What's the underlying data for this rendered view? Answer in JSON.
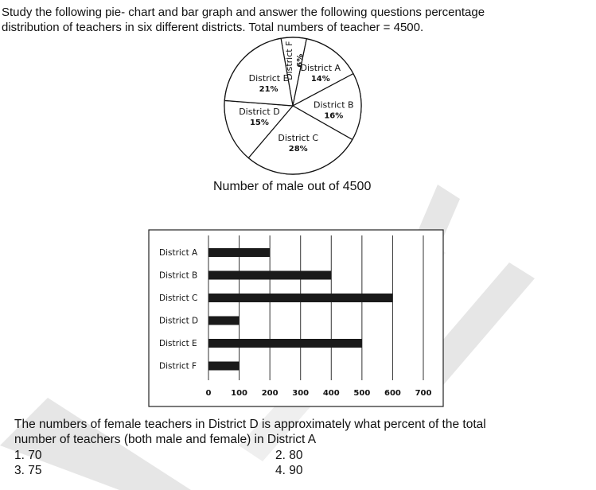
{
  "intro": {
    "line1": "Study the following pie- chart and bar graph and answer the following questions percentage",
    "line2": "distribution of teachers in six different districts. Total numbers of teacher = 4500."
  },
  "chart_data": [
    {
      "type": "pie",
      "title": "",
      "total": 4500,
      "labels": [
        "District F",
        "District A",
        "District B",
        "District C",
        "District D",
        "District E"
      ],
      "values": [
        6,
        14,
        16,
        28,
        15,
        21
      ],
      "value_labels": [
        "6%",
        "14%",
        "16%",
        "28%",
        "15%",
        "21%"
      ]
    },
    {
      "type": "bar",
      "orientation": "horizontal",
      "title": "Number of male out of 4500",
      "categories": [
        "District A",
        "District B",
        "District C",
        "District D",
        "District E",
        "District F"
      ],
      "values": [
        200,
        400,
        600,
        100,
        500,
        100
      ],
      "xlim": [
        0,
        700
      ],
      "xticks": [
        0,
        100,
        200,
        300,
        400,
        500,
        600,
        700
      ],
      "xlabel": "",
      "ylabel": "",
      "grid": "vertical"
    }
  ],
  "question": {
    "text_line1": "The numbers of female teachers in District D is approximately what percent of the total",
    "text_line2": "number of teachers (both male and female) in District A",
    "options": [
      "1. 70",
      "2. 80",
      "3. 75",
      "4. 90"
    ]
  },
  "colors": {
    "ink": "#111111",
    "bar": "#1a1a1a",
    "watermark": "#e3e3e3"
  }
}
